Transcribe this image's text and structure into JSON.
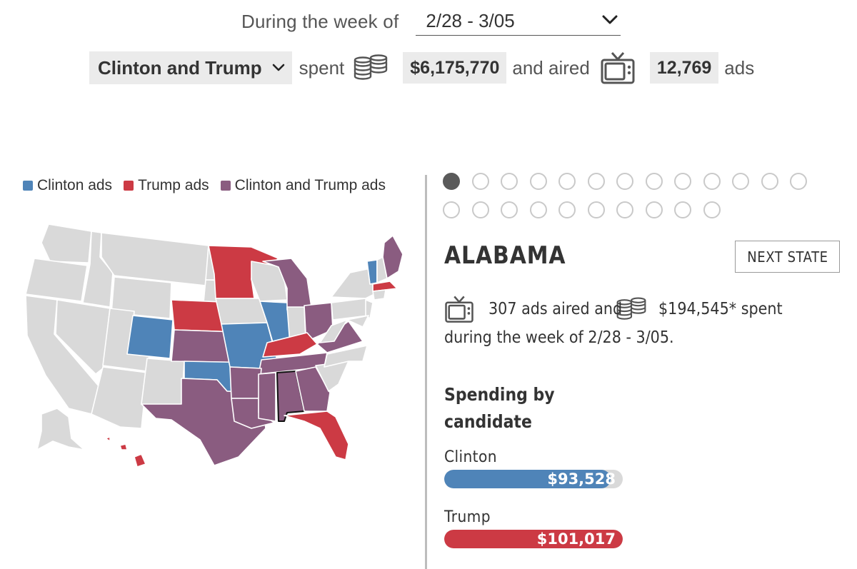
{
  "header": {
    "week_label": "During the week of",
    "week_value": "2/28 - 3/05",
    "candidate_value": "Clinton and Trump",
    "spent_text": "spent",
    "spent_amount": "$6,175,770",
    "aired_text": "and aired",
    "ads_count": "12,769",
    "ads_text": "ads"
  },
  "legend": [
    {
      "label": "Clinton ads",
      "color": "#4f84b8"
    },
    {
      "label": "Trump ads",
      "color": "#cc3a44"
    },
    {
      "label": "Clinton and Trump ads",
      "color": "#8a5c80"
    }
  ],
  "colors": {
    "clinton": "#4f84b8",
    "trump": "#cc3a44",
    "both": "#8a5c80",
    "none": "#d9d9d9",
    "dot_active": "#5a5a5a"
  },
  "pagination": {
    "total": 23,
    "active_index": 0
  },
  "state": {
    "name": "ALABAMA",
    "next_label": "NEXT STATE",
    "ads_aired": "307 ads aired and",
    "spent": "$194,545* spent",
    "week_text": "during the week of 2/28 - 3/05."
  },
  "spending": {
    "heading": "Spending by candidate",
    "bars": [
      {
        "name": "Clinton",
        "value": "$93,528",
        "share": 0.93,
        "color": "#4f84b8"
      },
      {
        "name": "Trump",
        "value": "$101,017",
        "share": 1.0,
        "color": "#cc3a44"
      }
    ]
  },
  "icons": {
    "coins": "coins-stack-icon",
    "tv": "television-icon",
    "chevron": "chevron-down-icon"
  }
}
